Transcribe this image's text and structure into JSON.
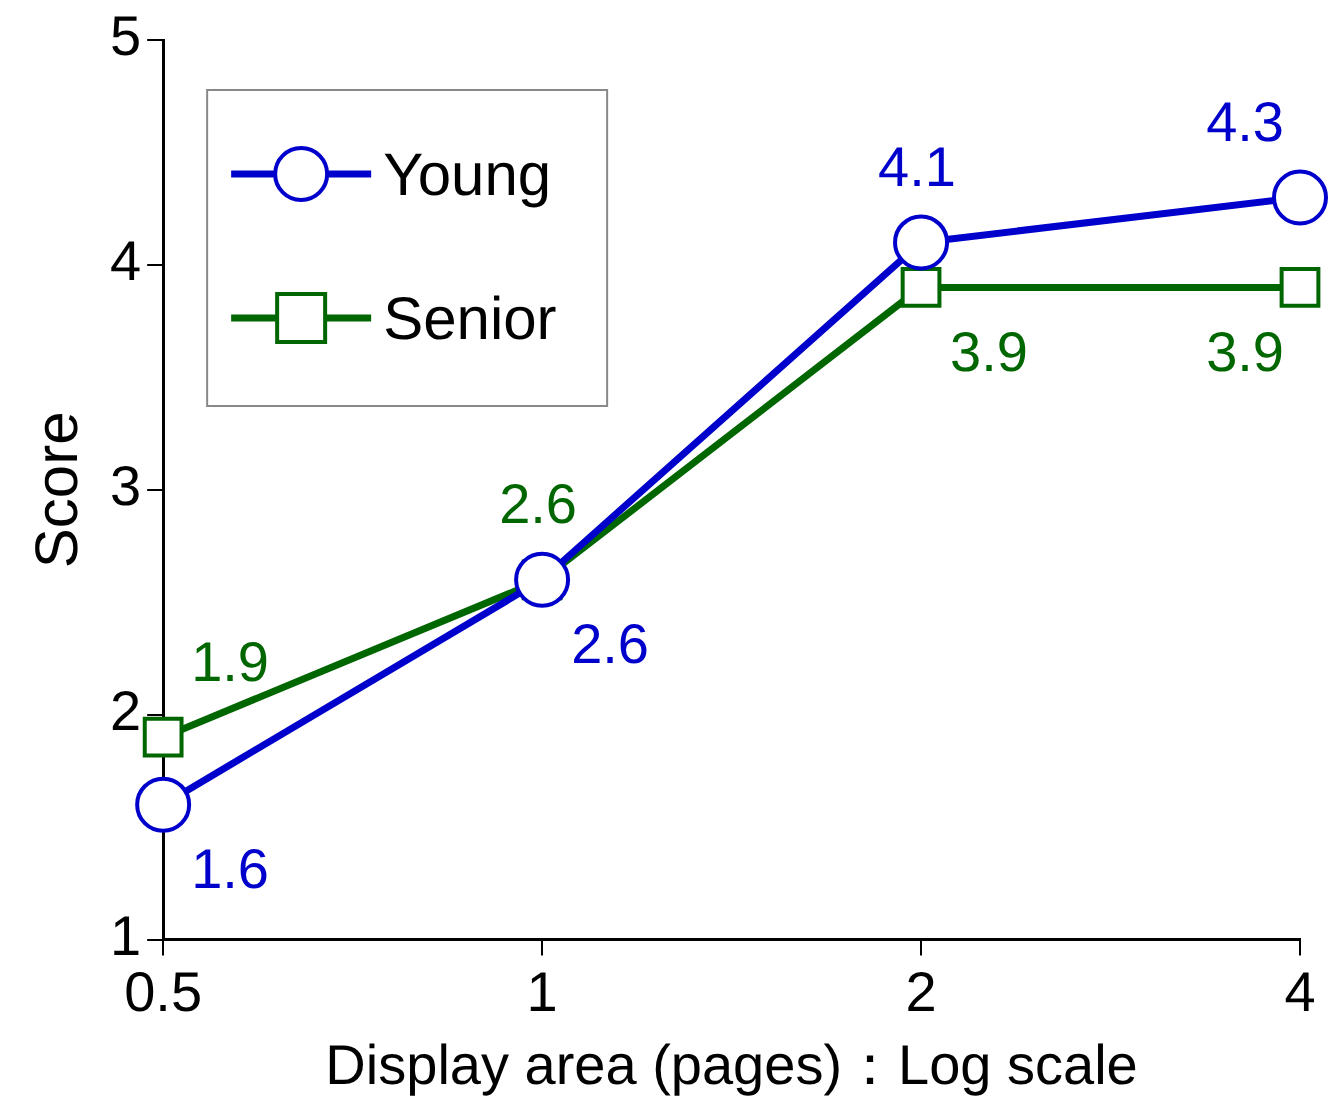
{
  "chart_data": {
    "type": "line",
    "xlabel": "Display area (pages)：Log scale",
    "ylabel": "Score",
    "log": "x",
    "x": [
      0.5,
      1,
      2,
      4
    ],
    "xlim": [
      0.5,
      4
    ],
    "xticks": [
      0.5,
      1,
      2,
      4
    ],
    "ylim": [
      1,
      5
    ],
    "yticks": [
      1,
      2,
      3,
      4,
      5
    ],
    "grid": false,
    "legend": "top left",
    "data_labels": true,
    "series": [
      {
        "name": "Young",
        "color": "#0000cc",
        "marker": "circle",
        "values": [
          1.6,
          2.6,
          4.1,
          4.3
        ]
      },
      {
        "name": "Senior",
        "color": "#006600",
        "marker": "square",
        "values": [
          1.9,
          2.6,
          3.9,
          3.9
        ]
      }
    ]
  }
}
